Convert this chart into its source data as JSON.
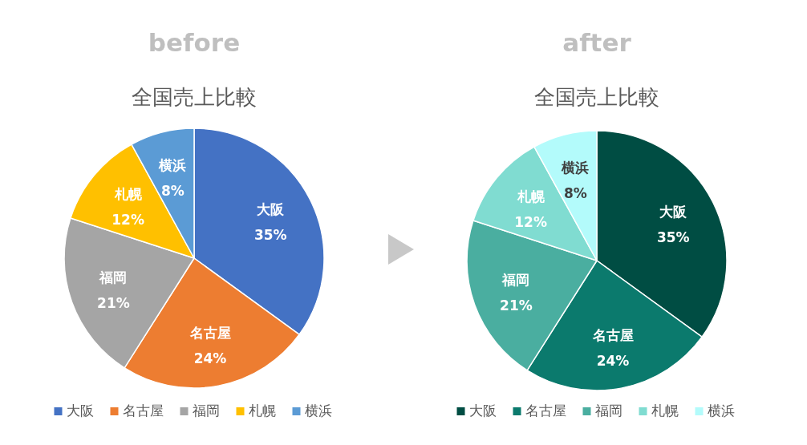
{
  "chart_data": [
    {
      "type": "pie",
      "title": "before",
      "subtitle": "全国売上比較",
      "categories": [
        "大阪",
        "名古屋",
        "福岡",
        "札幌",
        "横浜"
      ],
      "values": [
        35,
        24,
        21,
        12,
        8
      ],
      "value_labels": [
        "35%",
        "24%",
        "21%",
        "12%",
        "8%"
      ],
      "colors": [
        "#4472c4",
        "#ed7d31",
        "#a5a5a5",
        "#ffc000",
        "#5b9bd5"
      ],
      "legend": "bottom"
    },
    {
      "type": "pie",
      "title": "after",
      "subtitle": "全国売上比較",
      "categories": [
        "大阪",
        "名古屋",
        "福岡",
        "札幌",
        "横浜"
      ],
      "values": [
        35,
        24,
        21,
        12,
        8
      ],
      "value_labels": [
        "35%",
        "24%",
        "21%",
        "12%",
        "8%"
      ],
      "colors": [
        "#004d43",
        "#0b7a6d",
        "#4aaea0",
        "#80dcd1",
        "#b3fbfb"
      ],
      "legend": "bottom"
    }
  ]
}
